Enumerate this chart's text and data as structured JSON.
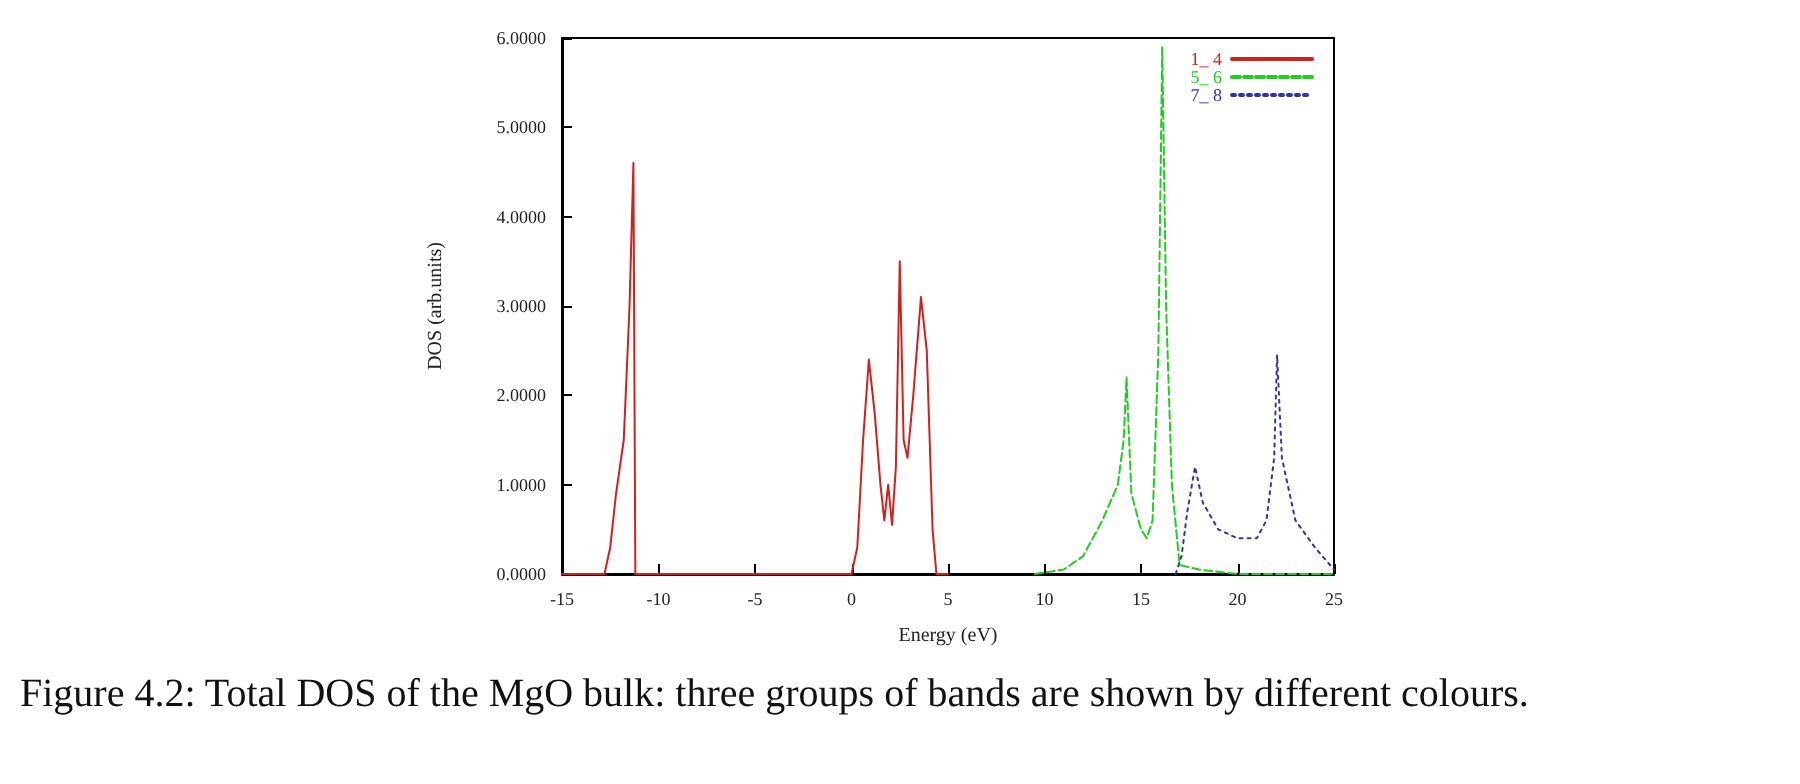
{
  "chart_data": {
    "type": "line",
    "xlabel": "Energy (eV)",
    "ylabel": "DOS (arb.units)",
    "xlim": [
      -15,
      25
    ],
    "xticks": [
      -15,
      -10,
      -5,
      0,
      5,
      10,
      15,
      20,
      25
    ],
    "ylim": [
      0,
      6
    ],
    "yticks": [
      {
        "value": 0,
        "label": "0.0000"
      },
      {
        "value": 1,
        "label": "1.0000"
      },
      {
        "value": 2,
        "label": "2.0000"
      },
      {
        "value": 3,
        "label": "3.0000"
      },
      {
        "value": 4,
        "label": "4.0000"
      },
      {
        "value": 5,
        "label": "5.0000"
      },
      {
        "value": 6,
        "label": "6.0000"
      }
    ],
    "grid": false,
    "legend": "top right",
    "marker": "none",
    "series": [
      {
        "name": "1_ 4",
        "color": "#cc2222",
        "line_style": "solid",
        "x": [
          -15,
          -12.8,
          -12.5,
          -12.2,
          -11.8,
          -11.5,
          -11.3,
          -11.2,
          0,
          0.3,
          0.6,
          0.9,
          1.2,
          1.5,
          1.7,
          1.9,
          2.1,
          2.3,
          2.5,
          2.7,
          2.9,
          3.2,
          3.6,
          3.9,
          4.2,
          4.4,
          5
        ],
        "values": [
          0,
          0,
          0.3,
          0.9,
          1.5,
          3.0,
          4.6,
          0,
          0,
          0.3,
          1.5,
          2.4,
          1.8,
          1.0,
          0.6,
          1.0,
          0.55,
          1.2,
          3.5,
          1.5,
          1.3,
          2.0,
          3.1,
          2.5,
          0.5,
          0,
          0
        ]
      },
      {
        "name": "5_ 6",
        "color": "#22cc22",
        "line_style": "dashed",
        "x": [
          9.5,
          11,
          12,
          13,
          13.8,
          14.1,
          14.25,
          14.5,
          15,
          15.3,
          15.6,
          15.9,
          16.1,
          16.3,
          16.6,
          17,
          18,
          20,
          25
        ],
        "values": [
          0,
          0.05,
          0.2,
          0.6,
          1.0,
          1.5,
          2.2,
          0.9,
          0.5,
          0.4,
          0.6,
          2.5,
          5.9,
          3.0,
          1.0,
          0.1,
          0.05,
          0,
          0
        ]
      },
      {
        "name": "7_ 8",
        "color": "#3333aa",
        "line_style": "dotted",
        "x": [
          16.8,
          17.1,
          17.4,
          17.8,
          18.2,
          19,
          20,
          21,
          21.5,
          21.9,
          22.05,
          22.3,
          23,
          24,
          25
        ],
        "values": [
          0,
          0.2,
          0.7,
          1.2,
          0.8,
          0.5,
          0.4,
          0.4,
          0.6,
          1.3,
          2.45,
          1.3,
          0.6,
          0.3,
          0.05
        ]
      }
    ],
    "annotations": [
      "Figure 4.2: Total DOS of the MgO bulk: three groups of bands are shown by different colours."
    ]
  }
}
